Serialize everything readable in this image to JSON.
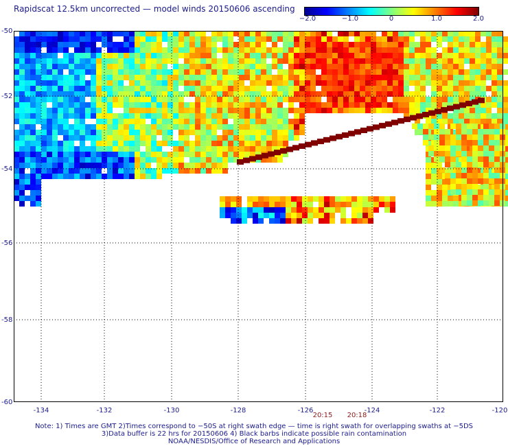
{
  "title": "Rapidscat 12.5km uncorrected — model winds 20150606 ascending",
  "colorbar": {
    "labels": [
      "−2.0",
      "−1.0",
      "0",
      "1.0",
      "2.0"
    ],
    "values": [
      -2.0,
      -1.0,
      0,
      1.0,
      2.0
    ],
    "colors": [
      "#00008f",
      "#0000ff",
      "#0080ff",
      "#00ffff",
      "#80ff80",
      "#ffff00",
      "#ff8000",
      "#ff0000",
      "#800000"
    ]
  },
  "axes": {
    "lat_labels": [
      "-50",
      "-52",
      "-54",
      "-56",
      "-58",
      "-60"
    ],
    "lon_labels": [
      "-134",
      "-132",
      "-130",
      "-128",
      "-126",
      "-124",
      "-122",
      "-120"
    ],
    "lat_range": [
      -60,
      -50
    ],
    "lon_range": [
      -134.8,
      -120
    ]
  },
  "times": [
    "20:15",
    "20:18"
  ],
  "notes": [
    "Note: 1) Times are GMT 2)Times correspond to −50S at right swath edge — time is right swath for overlapping swaths at −5DS",
    "3)Data buffer is 22 hrs for 20150606 4) Black barbs indicate possible rain contamination",
    "NOAA/NESDIS/Office of Research and Applications"
  ]
}
